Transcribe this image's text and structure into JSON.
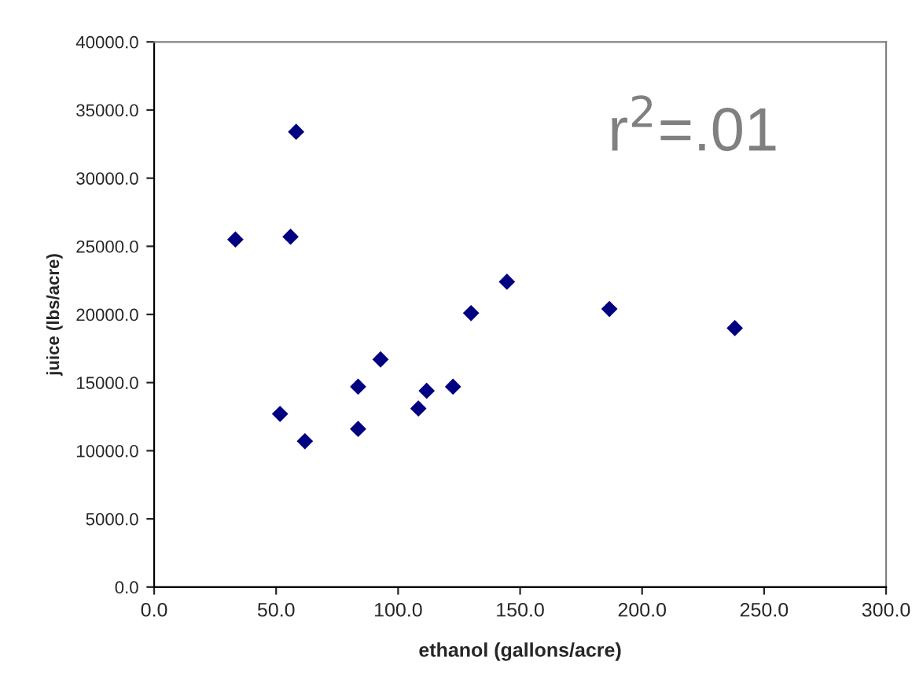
{
  "chart_data": {
    "type": "scatter",
    "xlabel": "ethanol (gallons/acre)",
    "ylabel": "juice (lbs/acre)",
    "annotations": [
      "r$^{2}$=.01"
    ],
    "x": [
      58.2,
      33.3,
      55.9,
      144.6,
      129.9,
      92.8,
      83.6,
      122.5,
      111.7,
      108.3,
      51.6,
      83.6,
      61.8,
      238.0,
      186.6
    ],
    "series": [
      {
        "color": "#000080",
        "values": [
          33400,
          25500,
          25700,
          22400,
          20100,
          16700,
          14700,
          14700,
          14400,
          13100,
          12700,
          11600,
          10700,
          19000,
          20400
        ]
      }
    ],
    "xlim": [
      0,
      300
    ],
    "ylim": [
      0,
      40000
    ],
    "xticks": [
      {
        "value": 0,
        "label": "0.0"
      },
      {
        "value": 50,
        "label": "50.0"
      },
      {
        "value": 100,
        "label": "100.0"
      },
      {
        "value": 150,
        "label": "150.0"
      },
      {
        "value": 200,
        "label": "200.0"
      },
      {
        "value": 250,
        "label": "250.0"
      },
      {
        "value": 300,
        "label": "300.0"
      }
    ],
    "yticks": [
      {
        "value": 0,
        "label": "0.0"
      },
      {
        "value": 5000,
        "label": "5000.0"
      },
      {
        "value": 10000,
        "label": "10000.0"
      },
      {
        "value": 15000,
        "label": "15000.0"
      },
      {
        "value": 20000,
        "label": "20000.0"
      },
      {
        "value": 25000,
        "label": "25000.0"
      },
      {
        "value": 30000,
        "label": "30000.0"
      },
      {
        "value": 35000,
        "label": "35000.0"
      },
      {
        "value": 40000,
        "label": "40000.0"
      }
    ],
    "marker": "diamond",
    "grid": false
  }
}
